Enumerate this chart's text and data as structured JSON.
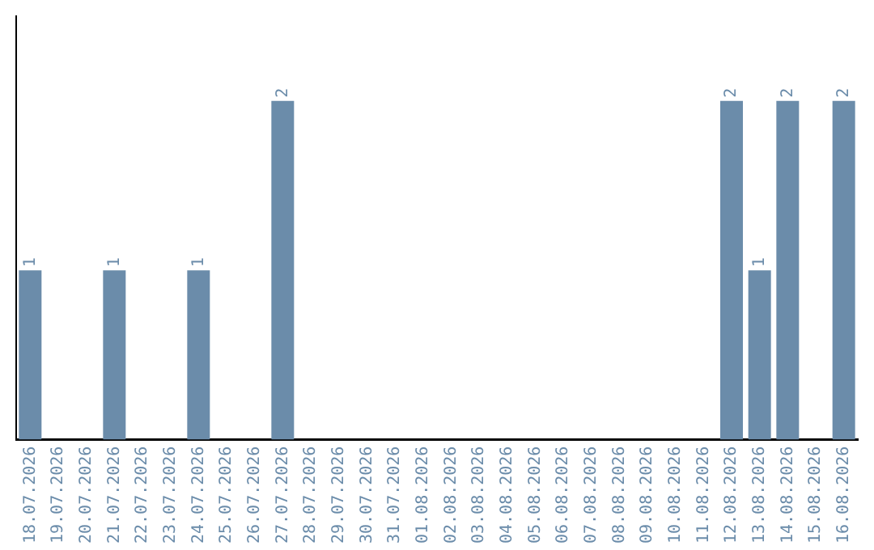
{
  "chart_data": {
    "type": "bar",
    "categories": [
      "18.07.2026",
      "19.07.2026",
      "20.07.2026",
      "21.07.2026",
      "22.07.2026",
      "23.07.2026",
      "24.07.2026",
      "25.07.2026",
      "26.07.2026",
      "27.07.2026",
      "28.07.2026",
      "29.07.2026",
      "30.07.2026",
      "31.07.2026",
      "01.08.2026",
      "02.08.2026",
      "03.08.2026",
      "04.08.2026",
      "05.08.2026",
      "06.08.2026",
      "07.08.2026",
      "08.08.2026",
      "09.08.2026",
      "10.08.2026",
      "11.08.2026",
      "12.08.2026",
      "13.08.2026",
      "14.08.2026",
      "15.08.2026",
      "16.08.2026"
    ],
    "values": [
      1,
      0,
      0,
      1,
      0,
      0,
      1,
      0,
      0,
      2,
      0,
      0,
      0,
      0,
      0,
      0,
      0,
      0,
      0,
      0,
      0,
      0,
      0,
      0,
      0,
      2,
      1,
      2,
      0,
      2
    ],
    "value_labels": [
      "1",
      null,
      null,
      "1",
      null,
      null,
      "1",
      null,
      null,
      "2",
      null,
      null,
      null,
      null,
      null,
      null,
      null,
      null,
      null,
      null,
      null,
      null,
      null,
      null,
      null,
      "2",
      "1",
      "2",
      null,
      "2"
    ],
    "color": "#6b8caa",
    "tick_labels": "x",
    "grid": false,
    "legend": false
  }
}
